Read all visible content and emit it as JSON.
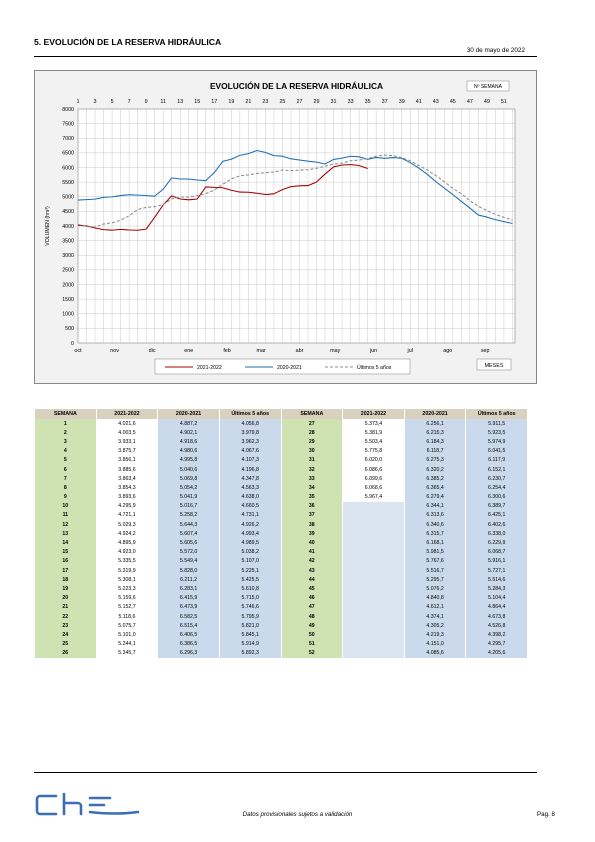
{
  "header": {
    "section_title": "5. EVOLUCIÓN DE LA RESERVA HIDRÁULICA",
    "date": "30  de mayo de 2022"
  },
  "chart_data": {
    "type": "line",
    "title": "EVOLUCIÓN DE LA RESERVA HIDRÁULICA",
    "ylabel": "VOLUMEN (hm³)",
    "xlabel": "MESES",
    "top_axis_label": "Nº SEMANA",
    "ylim": [
      0,
      8000
    ],
    "yticks": [
      0,
      500,
      1000,
      1500,
      2000,
      2500,
      3000,
      3500,
      4000,
      4500,
      5000,
      5500,
      6000,
      6500,
      7000,
      7500,
      8000
    ],
    "week_ticks": [
      1,
      3,
      5,
      7,
      9,
      11,
      13,
      15,
      17,
      19,
      21,
      23,
      25,
      27,
      29,
      31,
      33,
      35,
      37,
      39,
      41,
      43,
      45,
      47,
      49,
      51
    ],
    "month_labels": [
      {
        "label": "oct",
        "week": 1
      },
      {
        "label": "nov",
        "week": 5.3
      },
      {
        "label": "dic",
        "week": 9.7
      },
      {
        "label": "ene",
        "week": 14
      },
      {
        "label": "feb",
        "week": 18.5
      },
      {
        "label": "mar",
        "week": 22.5
      },
      {
        "label": "abr",
        "week": 27
      },
      {
        "label": "may",
        "week": 31.2
      },
      {
        "label": "jun",
        "week": 35.7
      },
      {
        "label": "jul",
        "week": 40
      },
      {
        "label": "ago",
        "week": 44.4
      },
      {
        "label": "sep",
        "week": 48.8
      }
    ],
    "legend": [
      "2021-2022",
      "2020-2021",
      "Últimos 5 años"
    ],
    "legend_position": "bottom",
    "grid": true,
    "colors": {
      "y2122": "#a40000",
      "y2021": "#1f6fb2",
      "avg5": "#8c8c8c"
    },
    "weeks": [
      1,
      2,
      3,
      4,
      5,
      6,
      7,
      8,
      9,
      10,
      11,
      12,
      13,
      14,
      15,
      16,
      17,
      18,
      19,
      20,
      21,
      22,
      23,
      24,
      25,
      26,
      27,
      28,
      29,
      30,
      31,
      32,
      33,
      34,
      35,
      36,
      37,
      38,
      39,
      40,
      41,
      42,
      43,
      44,
      45,
      46,
      47,
      48,
      49,
      50,
      51,
      52
    ],
    "series": [
      {
        "name": "2021-2022",
        "values": [
          4021.6,
          4003.5,
          3933.1,
          3875.7,
          3856.1,
          3885.6,
          3863.4,
          3854.3,
          3893.6,
          4295.9,
          4721.1,
          5029.3,
          4924.2,
          4895.9,
          4923.0,
          5335.5,
          5319.9,
          5308.1,
          5223.3,
          5159.6,
          5152.7,
          5118.6,
          5075.7,
          5101.0,
          5244.1,
          5345.7,
          5373.4,
          5381.9,
          5503.4,
          5775.8,
          6020.0,
          6086.6,
          6099.6,
          6068.6,
          5967.4
        ]
      },
      {
        "name": "2020-2021",
        "values": [
          4887.2,
          4902.1,
          4918.6,
          4980.6,
          4995.8,
          5040.6,
          5069.8,
          5054.2,
          5041.9,
          5016.7,
          5258.2,
          5644.3,
          5607.4,
          5605.6,
          5572.0,
          5549.4,
          5828.0,
          6211.2,
          6283.1,
          6415.9,
          6473.9,
          6582.5,
          6515.4,
          6406.5,
          6386.5,
          6296.3,
          6256.1,
          6215.3,
          6184.3,
          6118.7,
          6275.3,
          6320.2,
          6385.2,
          6365.4,
          6279.4,
          6344.1,
          6313.6,
          6340.6,
          6315.7,
          6168.1,
          5981.5,
          5767.6,
          5516.7,
          5295.7,
          5076.2,
          4840.8,
          4612.1,
          4374.1,
          4305.2,
          4219.3,
          4151.0,
          4085.6
        ]
      },
      {
        "name": "Últimos 5 años",
        "values": [
          4056.8,
          3979.8,
          3962.3,
          4067.6,
          4107.3,
          4196.8,
          4347.8,
          4563.3,
          4638.0,
          4660.5,
          4731.1,
          4926.2,
          4993.4,
          4989.5,
          5038.2,
          5107.0,
          5225.1,
          5425.5,
          5610.8,
          5715.0,
          5746.6,
          5795.9,
          5821.0,
          5845.1,
          5914.9,
          5892.3,
          5911.5,
          5923.5,
          5974.9,
          6041.5,
          6117.9,
          6152.1,
          6230.7,
          6254.4,
          6300.6,
          6389.7,
          6425.1,
          6402.6,
          6338.0,
          6229.9,
          6068.7,
          5916.1,
          5727.1,
          5514.6,
          5284.3,
          5104.4,
          4864.4,
          4673.8,
          4526.8,
          4398.2,
          4295.7,
          4205.6
        ]
      }
    ]
  },
  "table": {
    "headers": [
      "SEMANA",
      "2021-2022",
      "2020-2021",
      "Últimos 5 años",
      "SEMANA",
      "2021-2022",
      "2020-2021",
      "Últimos 5 años"
    ],
    "left": [
      [
        "1",
        "4.021,6",
        "4.887,2",
        "4.056,8"
      ],
      [
        "2",
        "4.003,5",
        "4.902,1",
        "3.979,8"
      ],
      [
        "3",
        "3.933,1",
        "4.918,6",
        "3.962,3"
      ],
      [
        "4",
        "3.875,7",
        "4.980,6",
        "4.067,6"
      ],
      [
        "5",
        "3.856,1",
        "4.995,8",
        "4.107,3"
      ],
      [
        "6",
        "3.885,6",
        "5.040,6",
        "4.196,8"
      ],
      [
        "7",
        "3.863,4",
        "5.069,8",
        "4.347,8"
      ],
      [
        "8",
        "3.854,3",
        "5.054,2",
        "4.563,3"
      ],
      [
        "9",
        "3.893,6",
        "5.041,9",
        "4.638,0"
      ],
      [
        "10",
        "4.295,9",
        "5.016,7",
        "4.660,5"
      ],
      [
        "11",
        "4.721,1",
        "5.258,2",
        "4.731,1"
      ],
      [
        "12",
        "5.029,3",
        "5.644,3",
        "4.926,2"
      ],
      [
        "13",
        "4.924,2",
        "5.607,4",
        "4.993,4"
      ],
      [
        "14",
        "4.895,9",
        "5.605,6",
        "4.989,5"
      ],
      [
        "15",
        "4.923,0",
        "5.572,0",
        "5.038,2"
      ],
      [
        "16",
        "5.335,5",
        "5.549,4",
        "5.107,0"
      ],
      [
        "17",
        "5.319,9",
        "5.828,0",
        "5.225,1"
      ],
      [
        "18",
        "5.308,1",
        "6.211,2",
        "5.425,5"
      ],
      [
        "19",
        "5.223,3",
        "6.283,1",
        "5.610,8"
      ],
      [
        "20",
        "5.159,6",
        "6.415,9",
        "5.715,0"
      ],
      [
        "21",
        "5.152,7",
        "6.473,9",
        "5.746,6"
      ],
      [
        "22",
        "5.118,6",
        "6.582,5",
        "5.795,9"
      ],
      [
        "23",
        "5.075,7",
        "6.515,4",
        "5.821,0"
      ],
      [
        "24",
        "5.101,0",
        "6.406,5",
        "5.845,1"
      ],
      [
        "25",
        "5.244,1",
        "6.386,5",
        "5.914,9"
      ],
      [
        "26",
        "5.345,7",
        "6.296,3",
        "5.892,3"
      ]
    ],
    "right": [
      [
        "27",
        "5.373,4",
        "6.256,1",
        "5.911,5"
      ],
      [
        "28",
        "5.381,9",
        "6.215,3",
        "5.923,5"
      ],
      [
        "29",
        "5.503,4",
        "6.184,3",
        "5.974,9"
      ],
      [
        "30",
        "5.775,8",
        "6.118,7",
        "6.041,5"
      ],
      [
        "31",
        "6.020,0",
        "6.275,3",
        "6.117,9"
      ],
      [
        "32",
        "6.086,6",
        "6.320,2",
        "6.152,1"
      ],
      [
        "33",
        "6.099,6",
        "6.385,2",
        "6.230,7"
      ],
      [
        "34",
        "6.068,6",
        "6.365,4",
        "6.254,4"
      ],
      [
        "35",
        "5.967,4",
        "6.279,4",
        "6.300,6"
      ],
      [
        "36",
        "",
        "6.344,1",
        "6.389,7"
      ],
      [
        "37",
        "",
        "6.313,6",
        "6.425,1"
      ],
      [
        "38",
        "",
        "6.340,6",
        "6.402,6"
      ],
      [
        "39",
        "",
        "6.315,7",
        "6.338,0"
      ],
      [
        "40",
        "",
        "6.168,1",
        "6.229,9"
      ],
      [
        "41",
        "",
        "5.981,5",
        "6.068,7"
      ],
      [
        "42",
        "",
        "5.767,6",
        "5.916,1"
      ],
      [
        "43",
        "",
        "5.516,7",
        "5.727,1"
      ],
      [
        "44",
        "",
        "5.295,7",
        "5.514,6"
      ],
      [
        "45",
        "",
        "5.076,2",
        "5.284,3"
      ],
      [
        "46",
        "",
        "4.840,8",
        "5.104,4"
      ],
      [
        "47",
        "",
        "4.612,1",
        "4.864,4"
      ],
      [
        "48",
        "",
        "4.374,1",
        "4.673,8"
      ],
      [
        "49",
        "",
        "4.305,2",
        "4.526,8"
      ],
      [
        "50",
        "",
        "4.219,3",
        "4.398,2"
      ],
      [
        "51",
        "",
        "4.151,0",
        "4.295,7"
      ],
      [
        "52",
        "",
        "4.085,6",
        "4.205,6"
      ]
    ]
  },
  "footer": {
    "note": "Datos provisionales sujetos a validación",
    "page": "Pag. 8",
    "logo_text": "che"
  }
}
